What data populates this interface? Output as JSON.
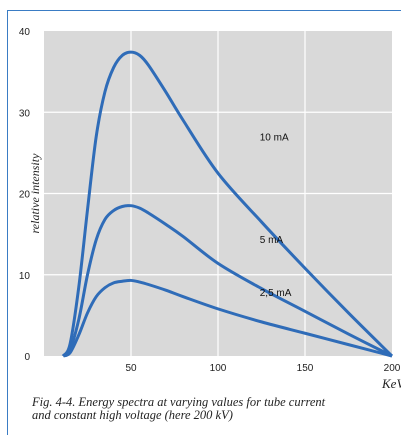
{
  "chart_data": {
    "type": "line",
    "title": "",
    "ylabel": "relative intensity",
    "xlabel": "KeV",
    "xlim": [
      0,
      200
    ],
    "ylim": [
      0,
      40
    ],
    "x_ticks": [
      50,
      100,
      150,
      200
    ],
    "y_ticks": [
      0,
      10,
      20,
      30,
      40
    ],
    "grid": true,
    "series": [
      {
        "name": "10 mA",
        "x": [
          11,
          15,
          20,
          25,
          30,
          35,
          40,
          45,
          50,
          55,
          60,
          70,
          80,
          100,
          125,
          150,
          175,
          200
        ],
        "y": [
          0,
          1.5,
          8.5,
          18,
          27,
          32.5,
          35.5,
          37,
          37.4,
          37,
          35.8,
          32.5,
          29,
          22.5,
          16.5,
          10.8,
          5.3,
          0
        ]
      },
      {
        "name": "5 mA",
        "x": [
          11,
          15,
          20,
          25,
          30,
          35,
          40,
          45,
          50,
          55,
          60,
          70,
          80,
          100,
          125,
          150,
          175,
          200
        ],
        "y": [
          0,
          0.8,
          4.5,
          10,
          14.3,
          16.8,
          17.9,
          18.4,
          18.5,
          18.2,
          17.6,
          16.2,
          14.7,
          11.4,
          8.3,
          5.5,
          2.7,
          0
        ]
      },
      {
        "name": "2,5 mA",
        "x": [
          11,
          15,
          20,
          25,
          30,
          35,
          40,
          45,
          50,
          55,
          60,
          70,
          80,
          100,
          125,
          150,
          175,
          200
        ],
        "y": [
          0,
          0.4,
          2.6,
          5.3,
          7.3,
          8.4,
          9,
          9.2,
          9.3,
          9.1,
          8.8,
          8.1,
          7.3,
          5.8,
          4.2,
          2.8,
          1.4,
          0
        ]
      }
    ],
    "line_color": "#2f6cb8",
    "grid_color": "#ffffff",
    "plot_background": "#d9d9d9"
  },
  "caption": {
    "line1": "Fig. 4-4. Energy spectra at varying values for tube current",
    "line2": "and constant high voltage (here 200 kV)"
  }
}
